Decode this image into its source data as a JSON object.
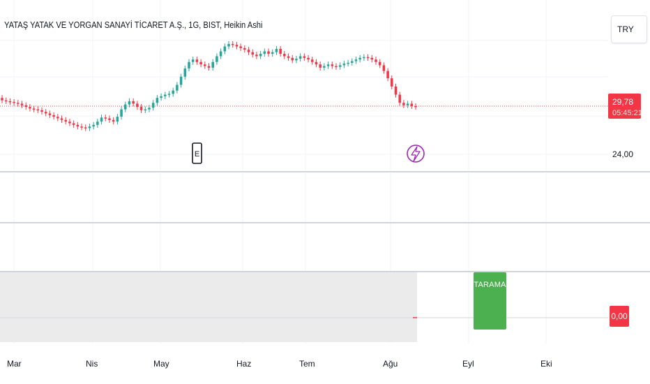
{
  "header": {
    "title": "YATAŞ YATAK VE YORGAN SANAYİ TİCARET A.Ş., 1G, BIST, Heikin Ashi",
    "currency": "TRY"
  },
  "price_scale": {
    "last_price": "29,78",
    "countdown": "05:45:21",
    "level_label": "24,00"
  },
  "markers": {
    "earnings": "E",
    "dividend_icon": "lightning-icon"
  },
  "indicator": {
    "signal_label": "TARAMA",
    "value_label": "0,00"
  },
  "colors": {
    "up": "#26a69a",
    "down": "#f23645",
    "neutral": "#7e57c2",
    "signal_box": "#4caf50",
    "dividend": "#9c27b0"
  },
  "chart_data": {
    "type": "candlestick",
    "title": "YATAŞ YATAK VE YORGAN SANAYİ TİCARET A.Ş., 1G, BIST, Heikin Ashi",
    "x_tick_labels": [
      "Mar",
      "Nis",
      "May",
      "Haz",
      "Tem",
      "Ağu",
      "Eyl",
      "Eki"
    ],
    "y_tick_labels": [
      "24,00"
    ],
    "last_price": 29.78,
    "close": [
      30.6,
      30.5,
      30.4,
      30.3,
      30.2,
      30.0,
      29.8,
      29.6,
      29.5,
      29.4,
      29.2,
      29.0,
      28.8,
      28.6,
      28.4,
      28.2,
      28.0,
      27.8,
      27.6,
      27.4,
      27.3,
      27.2,
      27.4,
      27.6,
      28.0,
      28.5,
      28.4,
      28.2,
      28.0,
      28.6,
      29.5,
      30.1,
      30.5,
      30.2,
      29.8,
      29.4,
      29.5,
      29.7,
      30.3,
      30.9,
      31.1,
      31.3,
      31.4,
      31.8,
      32.5,
      33.5,
      34.5,
      35.3,
      35.6,
      35.3,
      35.0,
      34.8,
      34.6,
      35.3,
      36.0,
      36.6,
      37.2,
      37.5,
      37.4,
      37.2,
      37.0,
      36.8,
      36.5,
      36.2,
      36.0,
      36.3,
      36.6,
      36.3,
      36.5,
      36.9,
      36.3,
      36.0,
      35.8,
      35.5,
      35.7,
      36.0,
      35.8,
      35.6,
      35.3,
      35.0,
      34.6,
      34.8,
      35.0,
      34.8,
      34.7,
      34.9,
      35.1,
      35.2,
      35.4,
      35.6,
      35.8,
      35.9,
      35.8,
      35.6,
      35.3,
      34.9,
      34.2,
      33.3,
      32.3,
      31.3,
      30.3,
      30.0,
      30.2,
      29.9,
      29.8
    ]
  }
}
